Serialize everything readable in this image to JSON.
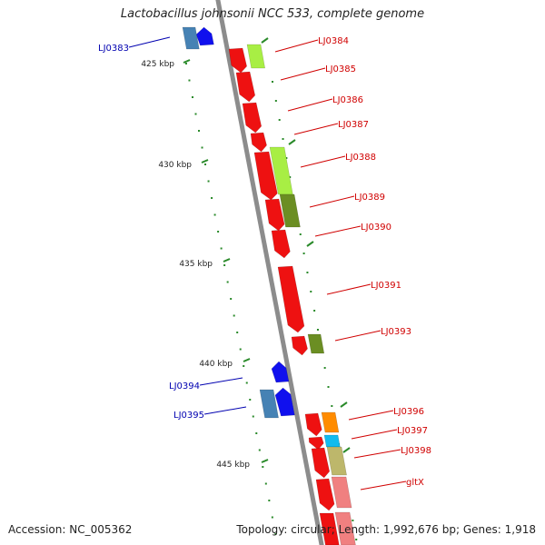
{
  "title": "Lactobacillus johnsonii NCC 533, complete genome",
  "footer": {
    "accession_label": "Accession:",
    "accession_value": "NC_005362",
    "topology_label": "Topology:",
    "topology_value": "circular",
    "length_label": "Length:",
    "length_value": "1,992,676 bp",
    "genes_label": "Genes:",
    "genes_value": "1,918"
  },
  "ruler": [
    "425 kbp",
    "430 kbp",
    "435 kbp",
    "440 kbp",
    "445 kbp"
  ],
  "colors": {
    "backbone": "#8c8c8c",
    "forward_label": "#d00000",
    "reverse_label": "#0000b0",
    "tick": "#2a8a2a",
    "cds_red": "#ee1111",
    "cds_blue": "#1010ee",
    "cog_lime": "#a8ee44",
    "cog_olive": "#6b8e23",
    "cog_orange": "#ff8c00",
    "cog_cyan": "#11bbee",
    "cog_khaki": "#bdb76b",
    "cog_pink": "#f08080",
    "cog_steel": "#4682b4"
  },
  "genes": [
    {
      "name": "LJ0383",
      "strand": "reverse"
    },
    {
      "name": "LJ0384",
      "strand": "forward"
    },
    {
      "name": "LJ0385",
      "strand": "forward"
    },
    {
      "name": "LJ0386",
      "strand": "forward"
    },
    {
      "name": "LJ0387",
      "strand": "forward"
    },
    {
      "name": "LJ0388",
      "strand": "forward"
    },
    {
      "name": "LJ0389",
      "strand": "forward"
    },
    {
      "name": "LJ0390",
      "strand": "forward"
    },
    {
      "name": "LJ0391",
      "strand": "forward"
    },
    {
      "name": "LJ0393",
      "strand": "forward"
    },
    {
      "name": "LJ0394",
      "strand": "reverse"
    },
    {
      "name": "LJ0395",
      "strand": "reverse"
    },
    {
      "name": "LJ0396",
      "strand": "forward"
    },
    {
      "name": "LJ0397",
      "strand": "forward"
    },
    {
      "name": "LJ0398",
      "strand": "forward"
    },
    {
      "name": "gltX",
      "strand": "forward"
    }
  ]
}
